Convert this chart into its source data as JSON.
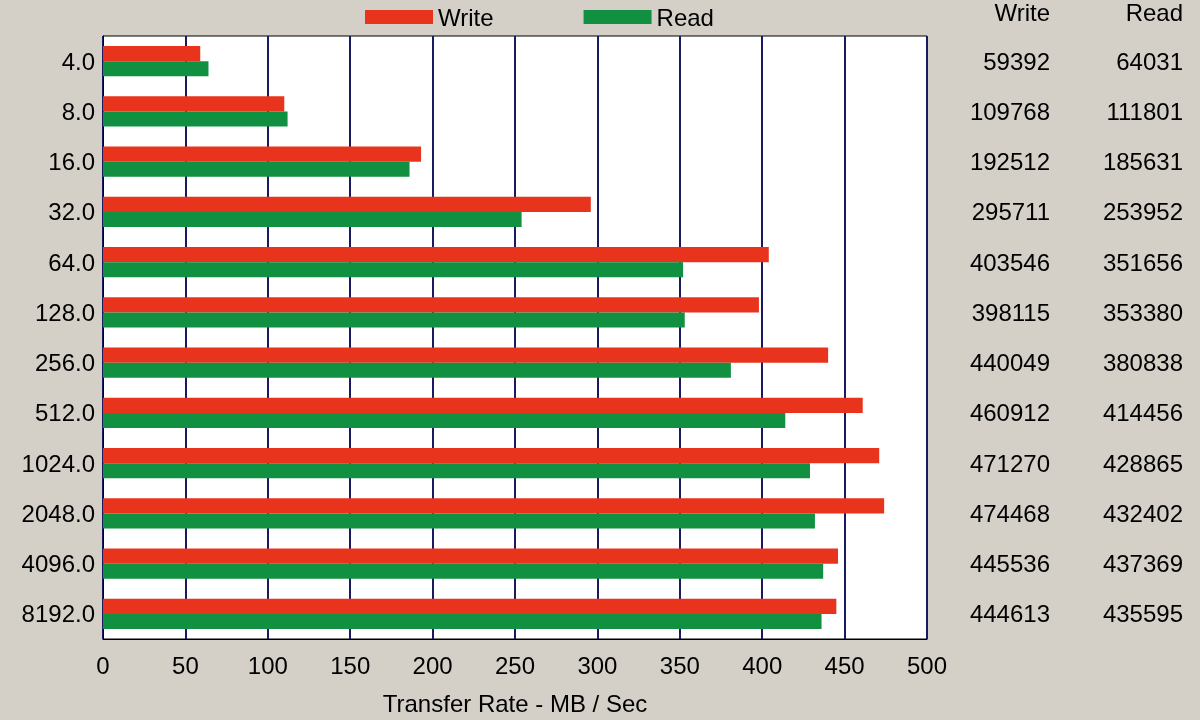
{
  "chart_data": {
    "type": "bar",
    "orientation": "horizontal",
    "xlabel": "Transfer Rate - MB / Sec",
    "categories": [
      "4.0",
      "8.0",
      "16.0",
      "32.0",
      "64.0",
      "128.0",
      "256.0",
      "512.0",
      "1024.0",
      "2048.0",
      "4096.0",
      "8192.0"
    ],
    "series": [
      {
        "name": "Write",
        "color": "#e8341c",
        "values": [
          59,
          110,
          193,
          296,
          404,
          398,
          440,
          461,
          471,
          474,
          446,
          445
        ]
      },
      {
        "name": "Read",
        "color": "#109040",
        "values": [
          64,
          112,
          186,
          254,
          352,
          353,
          381,
          414,
          429,
          432,
          437,
          436
        ]
      }
    ],
    "annotations": [
      "Write",
      "Read",
      "59392",
      "64031",
      "109768",
      "111801",
      "192512",
      "185631",
      "295711",
      "253952",
      "403546",
      "351656",
      "398115",
      "353380",
      "440049",
      "380838",
      "460912",
      "414456",
      "471270",
      "428865",
      "474468",
      "432402",
      "445536",
      "437369",
      "444613",
      "435595"
    ],
    "xlim": [
      0,
      500
    ],
    "xticks": [
      0,
      50,
      100,
      150,
      200,
      250,
      300,
      350,
      400,
      450,
      500
    ],
    "grid": "x",
    "legend": "top"
  }
}
